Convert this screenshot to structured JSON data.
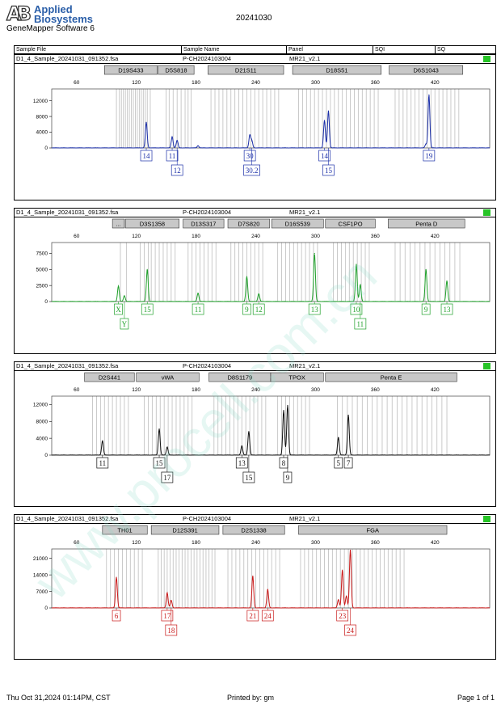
{
  "brand": {
    "mark": "AB",
    "line1": "Applied",
    "line2": "Biosystems"
  },
  "software": "GeneMapper Software 6",
  "report_date": "20241030",
  "columns": [
    "Sample File",
    "Sample Name",
    "Panel",
    "SQI",
    "SQ"
  ],
  "watermark": "www.procell.com.cn",
  "footer": {
    "timestamp": "Thu Oct 31,2024 01:14PM, CST",
    "printed_by": "Printed by: gm",
    "page": "Page 1 of 1"
  },
  "colors": {
    "blue": "#1a2ea8",
    "green": "#1fa02a",
    "black": "#111111",
    "red": "#c81818",
    "sq": "#27c427"
  },
  "chart_data": [
    {
      "type": "line",
      "sample_file": "D1_4_Sample_20241031_091352.fsa",
      "sample_name": "P-CH2024103004",
      "panel": "MR21_v2.1",
      "color": "blue",
      "x_ticks": [
        60,
        120,
        180,
        240,
        300,
        360,
        420
      ],
      "y_ticks": [
        0,
        4000,
        8000,
        12000
      ],
      "ylim": [
        0,
        15000
      ],
      "loci": [
        {
          "name": "D19S433",
          "start": 88,
          "end": 141
        },
        {
          "name": "D5S818",
          "start": 142,
          "end": 178
        },
        {
          "name": "D21S11",
          "start": 192,
          "end": 268
        },
        {
          "name": "D18S51",
          "start": 277,
          "end": 366
        },
        {
          "name": "D6S1043",
          "start": 374,
          "end": 448
        }
      ],
      "bins": [
        100,
        103,
        105,
        107,
        109,
        111,
        113,
        115,
        117,
        119,
        121,
        123,
        125,
        127,
        129,
        131,
        134,
        150,
        153,
        157,
        161,
        165,
        169,
        172,
        175,
        195,
        199,
        203,
        207,
        211,
        215,
        219,
        223,
        227,
        231,
        235,
        239,
        243,
        247,
        251,
        255,
        259,
        263,
        283,
        287,
        291,
        295,
        299,
        303,
        307,
        311,
        315,
        319,
        323,
        327,
        331,
        335,
        339,
        343,
        347,
        351,
        355,
        359,
        363,
        380,
        384,
        388,
        392,
        396,
        400,
        404,
        408,
        412,
        416,
        420,
        424,
        428,
        432,
        436,
        440,
        444
      ],
      "peaks": [
        {
          "x": 130,
          "y": 6500
        },
        {
          "x": 156,
          "y": 2800
        },
        {
          "x": 161,
          "y": 1900
        },
        {
          "x": 182,
          "y": 550
        },
        {
          "x": 234,
          "y": 3200
        },
        {
          "x": 236,
          "y": 1800
        },
        {
          "x": 309,
          "y": 7000
        },
        {
          "x": 313,
          "y": 9400
        },
        {
          "x": 411,
          "y": 1000
        },
        {
          "x": 414,
          "y": 13500
        }
      ],
      "calls": [
        {
          "label": "14",
          "x": 130,
          "row": 0
        },
        {
          "label": "11",
          "x": 156,
          "row": 0
        },
        {
          "label": "12",
          "x": 161,
          "row": 1
        },
        {
          "label": "30",
          "x": 234,
          "row": 0
        },
        {
          "label": "30.2",
          "x": 236,
          "row": 1
        },
        {
          "label": "14",
          "x": 309,
          "row": 0
        },
        {
          "label": "15",
          "x": 313,
          "row": 1
        },
        {
          "label": "19",
          "x": 414,
          "row": 0
        }
      ]
    },
    {
      "type": "line",
      "sample_file": "D1_4_Sample_20241031_091352.fsa",
      "sample_name": "P-CH2024103004",
      "panel": "MR21_v2.1",
      "color": "green",
      "x_ticks": [
        60,
        120,
        180,
        240,
        300,
        360,
        420
      ],
      "y_ticks": [
        0,
        2500,
        5000,
        7500
      ],
      "ylim": [
        0,
        9200
      ],
      "loci": [
        {
          "name": "...",
          "start": 96,
          "end": 108
        },
        {
          "name": "D3S1358",
          "start": 109,
          "end": 163
        },
        {
          "name": "D13S317",
          "start": 167,
          "end": 208
        },
        {
          "name": "D7S820",
          "start": 212,
          "end": 254
        },
        {
          "name": "D16S539",
          "start": 256,
          "end": 308
        },
        {
          "name": "CSF1PO",
          "start": 310,
          "end": 360
        },
        {
          "name": "Penta D",
          "start": 373,
          "end": 450
        }
      ],
      "bins": [
        104,
        110,
        124,
        128,
        132,
        135,
        139,
        143,
        147,
        151,
        155,
        159,
        172,
        176,
        180,
        184,
        188,
        192,
        196,
        200,
        215,
        219,
        223,
        227,
        231,
        235,
        239,
        243,
        247,
        262,
        266,
        270,
        274,
        278,
        282,
        286,
        290,
        294,
        298,
        302,
        318,
        322,
        326,
        330,
        334,
        338,
        342,
        346,
        350,
        354,
        380,
        385,
        390,
        395,
        400,
        405,
        410,
        415,
        420,
        425,
        430,
        435,
        440,
        445
      ],
      "peaks": [
        {
          "x": 102,
          "y": 2400
        },
        {
          "x": 108,
          "y": 900
        },
        {
          "x": 131,
          "y": 5000
        },
        {
          "x": 182,
          "y": 1300
        },
        {
          "x": 231,
          "y": 3900
        },
        {
          "x": 243,
          "y": 1200
        },
        {
          "x": 299,
          "y": 7500
        },
        {
          "x": 341,
          "y": 5800
        },
        {
          "x": 345,
          "y": 2600
        },
        {
          "x": 411,
          "y": 5000
        },
        {
          "x": 432,
          "y": 3200
        }
      ],
      "calls": [
        {
          "label": "X",
          "x": 102,
          "row": 0
        },
        {
          "label": "Y",
          "x": 108,
          "row": 1
        },
        {
          "label": "15",
          "x": 131,
          "row": 0
        },
        {
          "label": "11",
          "x": 182,
          "row": 0
        },
        {
          "label": "9",
          "x": 231,
          "row": 0
        },
        {
          "label": "12",
          "x": 243,
          "row": 0
        },
        {
          "label": "13",
          "x": 299,
          "row": 0
        },
        {
          "label": "10",
          "x": 341,
          "row": 0
        },
        {
          "label": "11",
          "x": 345,
          "row": 1
        },
        {
          "label": "9",
          "x": 411,
          "row": 0
        },
        {
          "label": "13",
          "x": 432,
          "row": 0
        }
      ]
    },
    {
      "type": "line",
      "sample_file": "D1_4_Sample_20241031_091352.fsa",
      "sample_name": "P-CH2024103004",
      "panel": "MR21_v2.1",
      "color": "black",
      "x_ticks": [
        60,
        120,
        180,
        240,
        300,
        360,
        420
      ],
      "y_ticks": [
        0,
        4000,
        8000,
        12000
      ],
      "ylim": [
        0,
        14000
      ],
      "loci": [
        {
          "name": "D2S441",
          "start": 68,
          "end": 118
        },
        {
          "name": "vWA",
          "start": 120,
          "end": 183
        },
        {
          "name": "D8S1179",
          "start": 193,
          "end": 255
        },
        {
          "name": "TPOX",
          "start": 255,
          "end": 308
        },
        {
          "name": "Penta E",
          "start": 310,
          "end": 442
        }
      ],
      "bins": [
        76,
        80,
        84,
        88,
        92,
        96,
        100,
        104,
        108,
        112,
        128,
        132,
        136,
        140,
        144,
        148,
        152,
        156,
        160,
        164,
        168,
        172,
        176,
        198,
        202,
        206,
        210,
        214,
        218,
        222,
        226,
        230,
        234,
        238,
        242,
        246,
        250,
        262,
        266,
        270,
        274,
        278,
        282,
        286,
        290,
        294,
        322,
        327,
        332,
        337,
        342,
        347,
        352,
        357,
        362,
        367,
        372,
        377,
        382,
        387,
        392,
        397,
        402,
        407,
        412,
        417,
        422,
        427,
        432
      ],
      "peaks": [
        {
          "x": 86,
          "y": 3400
        },
        {
          "x": 143,
          "y": 6200
        },
        {
          "x": 151,
          "y": 1900
        },
        {
          "x": 226,
          "y": 2200
        },
        {
          "x": 233,
          "y": 5600
        },
        {
          "x": 268,
          "y": 10600
        },
        {
          "x": 272,
          "y": 11800
        },
        {
          "x": 323,
          "y": 4200
        },
        {
          "x": 333,
          "y": 9500
        }
      ],
      "calls": [
        {
          "label": "11",
          "x": 86,
          "row": 0
        },
        {
          "label": "15",
          "x": 143,
          "row": 0
        },
        {
          "label": "17",
          "x": 151,
          "row": 1
        },
        {
          "label": "13",
          "x": 226,
          "row": 0
        },
        {
          "label": "15",
          "x": 233,
          "row": 1
        },
        {
          "label": "8",
          "x": 268,
          "row": 0
        },
        {
          "label": "9",
          "x": 272,
          "row": 1
        },
        {
          "label": "5",
          "x": 323,
          "row": 0
        },
        {
          "label": "7",
          "x": 333,
          "row": 0
        }
      ]
    },
    {
      "type": "line",
      "sample_file": "D1_4_Sample_20241031_091352.fsa",
      "sample_name": "P-CH2024103004",
      "panel": "MR21_v2.1",
      "color": "red",
      "x_ticks": [
        60,
        120,
        180,
        240,
        300,
        360,
        420
      ],
      "y_ticks": [
        0,
        7000,
        14000,
        21000
      ],
      "ylim": [
        0,
        25000
      ],
      "loci": [
        {
          "name": "TH01",
          "start": 86,
          "end": 131
        },
        {
          "name": "D12S391",
          "start": 135,
          "end": 203
        },
        {
          "name": "D2S1338",
          "start": 207,
          "end": 269
        },
        {
          "name": "FGA",
          "start": 283,
          "end": 432
        }
      ],
      "bins": [
        90,
        94,
        98,
        102,
        106,
        110,
        114,
        118,
        122,
        126,
        142,
        145,
        148,
        151,
        154,
        157,
        160,
        163,
        166,
        169,
        172,
        175,
        178,
        181,
        184,
        187,
        190,
        193,
        196,
        199,
        212,
        216,
        220,
        224,
        228,
        232,
        236,
        240,
        244,
        248,
        252,
        256,
        260,
        264,
        285,
        289,
        293,
        297,
        301,
        305,
        309,
        313,
        317,
        321,
        325,
        329,
        333,
        337,
        341,
        345,
        349,
        353,
        357,
        361,
        365,
        369,
        373,
        377,
        381,
        385,
        389
      ],
      "peaks": [
        {
          "x": 100,
          "y": 13000
        },
        {
          "x": 151,
          "y": 6400
        },
        {
          "x": 155,
          "y": 3200
        },
        {
          "x": 237,
          "y": 13500
        },
        {
          "x": 252,
          "y": 7800
        },
        {
          "x": 323,
          "y": 3500
        },
        {
          "x": 327,
          "y": 16000
        },
        {
          "x": 331,
          "y": 5000
        },
        {
          "x": 335,
          "y": 24500
        }
      ],
      "calls": [
        {
          "label": "6",
          "x": 100,
          "row": 0
        },
        {
          "label": "17",
          "x": 151,
          "row": 0
        },
        {
          "label": "18",
          "x": 155,
          "row": 1
        },
        {
          "label": "21",
          "x": 237,
          "row": 0
        },
        {
          "label": "24",
          "x": 252,
          "row": 0
        },
        {
          "label": "23",
          "x": 327,
          "row": 0
        },
        {
          "label": "24",
          "x": 335,
          "row": 1
        }
      ]
    }
  ]
}
